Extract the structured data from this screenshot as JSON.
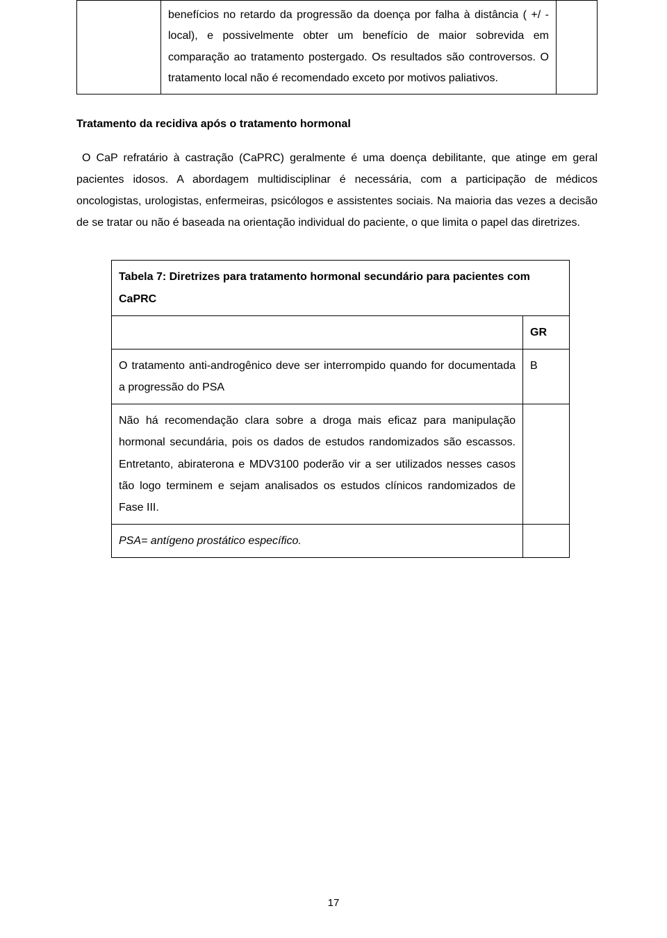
{
  "topTable": {
    "cellText": "benefícios no retardo da progressão da doença por falha à distância ( +/ -local), e possivelmente obter um benefício de maior sobrevida em comparação ao tratamento postergado. Os resultados são controversos. O tratamento local não é recomendado exceto por motivos paliativos."
  },
  "heading": "Tratamento da recidiva após o tratamento hormonal",
  "paragraph": "O CaP refratário à castração (CaPRC) geralmente é uma doença debilitante, que atinge em geral pacientes idosos. A abordagem multidisciplinar é necessária, com a participação de médicos oncologistas, urologistas, enfermeiras, psicólogos e assistentes sociais. Na maioria das vezes a decisão de se tratar ou não é baseada na orientação individual do paciente, o que limita o papel das diretrizes.",
  "table7": {
    "title": "Tabela 7: Diretrizes para tratamento hormonal secundário para pacientes com CaPRC",
    "grHeader": "GR",
    "row1": {
      "text": "O tratamento anti-androgênico deve ser interrompido quando for documentada a progressão do PSA",
      "gr": "B"
    },
    "row2": {
      "text": "Não há recomendação clara sobre a droga mais eficaz para manipulação hormonal secundária, pois os dados de estudos randomizados são escassos. Entretanto, abiraterona e MDV3100 poderão vir a ser utilizados nesses casos tão logo terminem e sejam analisados os estudos clínicos randomizados de Fase III."
    },
    "footnote": "PSA= antígeno prostático específico."
  },
  "pageNumber": "17"
}
